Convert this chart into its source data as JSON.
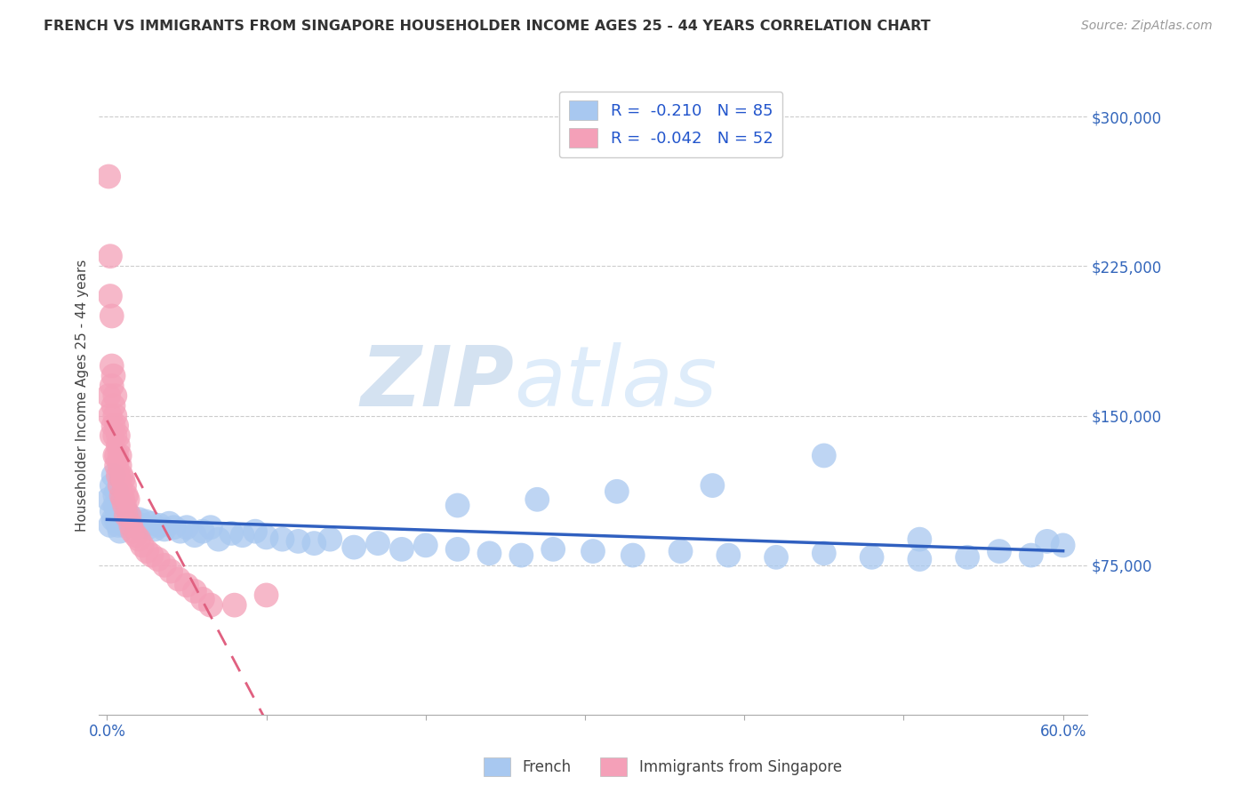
{
  "title": "FRENCH VS IMMIGRANTS FROM SINGAPORE HOUSEHOLDER INCOME AGES 25 - 44 YEARS CORRELATION CHART",
  "source": "Source: ZipAtlas.com",
  "ylabel": "Householder Income Ages 25 - 44 years",
  "xlim": [
    -0.005,
    0.615
  ],
  "ylim": [
    0,
    320000
  ],
  "xticks": [
    0.0,
    0.1,
    0.2,
    0.3,
    0.4,
    0.5,
    0.6
  ],
  "xticklabels": [
    "0.0%",
    "",
    "",
    "",
    "",
    "",
    "60.0%"
  ],
  "yticks": [
    75000,
    150000,
    225000,
    300000
  ],
  "yticklabels": [
    "$75,000",
    "$150,000",
    "$225,000",
    "$300,000"
  ],
  "french_R": -0.21,
  "french_N": 85,
  "singapore_R": -0.042,
  "singapore_N": 52,
  "french_color": "#a8c8f0",
  "singapore_color": "#f4a0b8",
  "french_line_color": "#3060c0",
  "singapore_line_color": "#e06080",
  "watermark_zip": "ZIP",
  "watermark_atlas": "atlas",
  "legend_labels": [
    "French",
    "Immigrants from Singapore"
  ],
  "french_x": [
    0.001,
    0.002,
    0.003,
    0.003,
    0.004,
    0.004,
    0.005,
    0.005,
    0.006,
    0.006,
    0.006,
    0.007,
    0.007,
    0.007,
    0.008,
    0.008,
    0.008,
    0.009,
    0.009,
    0.01,
    0.01,
    0.01,
    0.011,
    0.011,
    0.012,
    0.012,
    0.013,
    0.013,
    0.014,
    0.015,
    0.016,
    0.017,
    0.018,
    0.019,
    0.02,
    0.022,
    0.024,
    0.026,
    0.028,
    0.03,
    0.033,
    0.036,
    0.039,
    0.042,
    0.046,
    0.05,
    0.055,
    0.06,
    0.065,
    0.07,
    0.078,
    0.085,
    0.093,
    0.1,
    0.11,
    0.12,
    0.13,
    0.14,
    0.155,
    0.17,
    0.185,
    0.2,
    0.22,
    0.24,
    0.26,
    0.28,
    0.305,
    0.33,
    0.36,
    0.39,
    0.42,
    0.45,
    0.48,
    0.51,
    0.54,
    0.56,
    0.58,
    0.59,
    0.6,
    0.51,
    0.45,
    0.38,
    0.32,
    0.27,
    0.22
  ],
  "french_y": [
    108000,
    95000,
    102000,
    115000,
    98000,
    120000,
    105000,
    110000,
    97000,
    103000,
    112000,
    100000,
    95000,
    108000,
    98000,
    103000,
    92000,
    100000,
    97000,
    104000,
    96000,
    99000,
    101000,
    95000,
    98000,
    102000,
    97000,
    100000,
    96000,
    98000,
    95000,
    97000,
    96000,
    94000,
    98000,
    95000,
    97000,
    94000,
    96000,
    93000,
    95000,
    93000,
    96000,
    94000,
    92000,
    94000,
    90000,
    92000,
    94000,
    88000,
    91000,
    90000,
    92000,
    89000,
    88000,
    87000,
    86000,
    88000,
    84000,
    86000,
    83000,
    85000,
    83000,
    81000,
    80000,
    83000,
    82000,
    80000,
    82000,
    80000,
    79000,
    81000,
    79000,
    78000,
    79000,
    82000,
    80000,
    87000,
    85000,
    88000,
    130000,
    115000,
    112000,
    108000,
    105000
  ],
  "singapore_x": [
    0.001,
    0.001,
    0.002,
    0.002,
    0.002,
    0.003,
    0.003,
    0.003,
    0.003,
    0.004,
    0.004,
    0.004,
    0.005,
    0.005,
    0.005,
    0.005,
    0.006,
    0.006,
    0.006,
    0.007,
    0.007,
    0.007,
    0.008,
    0.008,
    0.008,
    0.009,
    0.009,
    0.01,
    0.01,
    0.011,
    0.011,
    0.012,
    0.012,
    0.013,
    0.014,
    0.015,
    0.016,
    0.018,
    0.02,
    0.022,
    0.025,
    0.028,
    0.032,
    0.036,
    0.04,
    0.045,
    0.05,
    0.055,
    0.06,
    0.065,
    0.08,
    0.1
  ],
  "singapore_y": [
    160000,
    270000,
    150000,
    210000,
    230000,
    140000,
    165000,
    175000,
    200000,
    155000,
    145000,
    170000,
    130000,
    150000,
    160000,
    140000,
    130000,
    145000,
    125000,
    135000,
    120000,
    140000,
    125000,
    115000,
    130000,
    120000,
    110000,
    118000,
    108000,
    115000,
    105000,
    110000,
    100000,
    108000,
    100000,
    95000,
    92000,
    90000,
    88000,
    85000,
    82000,
    80000,
    78000,
    75000,
    72000,
    68000,
    65000,
    62000,
    58000,
    55000,
    55000,
    60000
  ]
}
